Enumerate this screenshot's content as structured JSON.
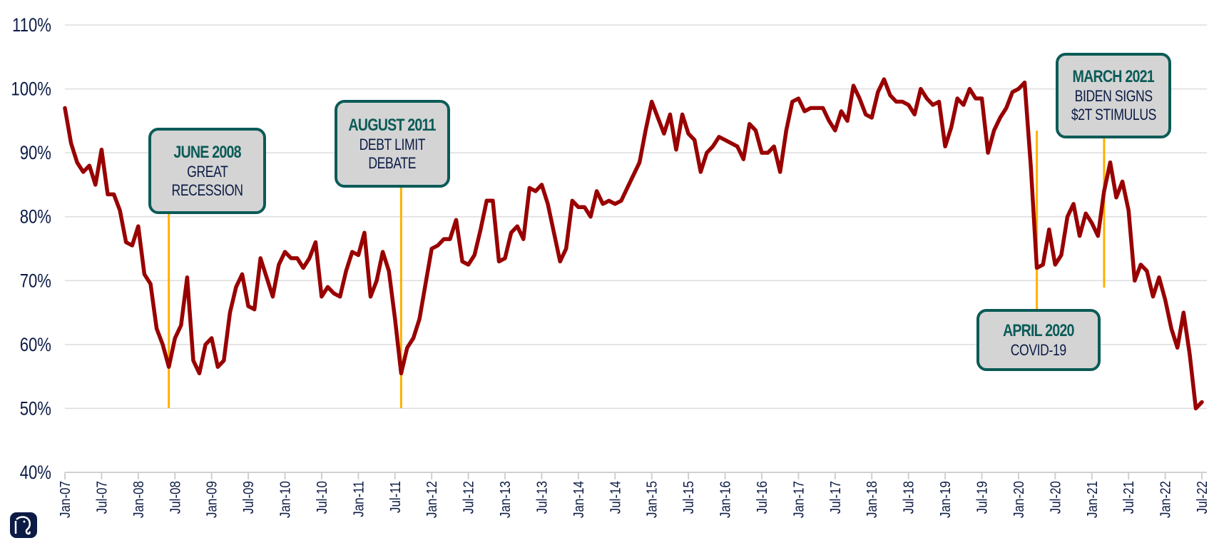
{
  "chart_data": {
    "type": "line",
    "title": "",
    "xlabel": "",
    "ylabel": "",
    "ylim": [
      40,
      110
    ],
    "y_ticks": [
      "40%",
      "50%",
      "60%",
      "70%",
      "80%",
      "90%",
      "100%",
      "110%"
    ],
    "y_tick_values": [
      40,
      50,
      60,
      70,
      80,
      90,
      100,
      110
    ],
    "x_ticks": [
      "Jan-07",
      "Jul-07",
      "Jan-08",
      "Jul-08",
      "Jan-09",
      "Jul-09",
      "Jan-10",
      "Jul-10",
      "Jan-11",
      "Jul-11",
      "Jan-12",
      "Jul-12",
      "Jan-13",
      "Jul-13",
      "Jan-14",
      "Jul-14",
      "Jan-15",
      "Jul-15",
      "Jan-16",
      "Jul-16",
      "Jan-17",
      "Jul-17",
      "Jan-18",
      "Jul-18",
      "Jan-19",
      "Jul-19",
      "Jan-20",
      "Jul-20",
      "Jan-21",
      "Jul-21",
      "Jan-22",
      "Jul-22"
    ],
    "x_start": "Jan-07",
    "x_unit": "month",
    "grid": true,
    "series": [
      {
        "name": "series",
        "color": "#990000",
        "values": [
          97,
          91.5,
          88.5,
          87,
          88,
          85,
          90.5,
          83.5,
          83.5,
          81,
          76,
          75.5,
          78.5,
          71,
          69.5,
          62.5,
          60,
          56.5,
          61,
          63,
          70.5,
          57.5,
          55.5,
          60,
          61,
          56.5,
          57.5,
          65,
          69,
          71,
          66,
          65.5,
          73.5,
          70.5,
          67.5,
          72.5,
          74.5,
          73.5,
          73.5,
          72,
          73.5,
          76,
          67.5,
          69,
          68,
          67.5,
          71.5,
          74.5,
          74,
          77.5,
          67.5,
          70,
          74.5,
          71.5,
          64,
          55.5,
          59.5,
          61,
          64,
          69.5,
          75,
          75.5,
          76.5,
          76.5,
          79.5,
          73,
          72.5,
          74,
          78,
          82.5,
          82.5,
          73,
          73.5,
          77.5,
          78.5,
          76.5,
          84.5,
          84,
          85,
          82,
          77.5,
          73,
          75,
          82.5,
          81.5,
          81.5,
          80,
          84,
          82,
          82.5,
          82,
          82.5,
          84.5,
          86.5,
          88.5,
          93.5,
          98,
          95.5,
          93,
          96,
          90.5,
          96,
          93,
          92,
          87,
          90,
          91,
          92.5,
          92,
          91.5,
          91,
          89,
          94.5,
          93.5,
          90,
          90,
          91,
          87,
          93.5,
          98,
          98.5,
          96.5,
          97,
          97,
          97,
          95,
          93.5,
          96.5,
          95,
          100.5,
          98.5,
          96,
          95.5,
          99.5,
          101.5,
          99,
          98,
          98,
          97.5,
          96,
          100,
          98.5,
          97.5,
          98,
          91,
          94,
          98.5,
          97.5,
          100,
          98.5,
          98.5,
          90,
          93.5,
          95.5,
          97,
          99.5,
          100,
          101,
          88,
          72,
          72.5,
          78,
          72.5,
          74,
          80,
          82,
          77,
          80.5,
          79,
          77,
          84,
          88.5,
          83,
          85.5,
          81,
          70,
          72.5,
          71.5,
          67.5,
          70.5,
          67,
          62.5,
          59.5,
          65,
          58.5,
          50,
          51
        ]
      }
    ],
    "annotations": [
      {
        "date": "JUNE 2008",
        "lines": [
          "GREAT",
          "RECESSION"
        ],
        "month_index": 17
      },
      {
        "date": "AUGUST 2011",
        "lines": [
          "DEBT LIMIT",
          "DEBATE"
        ],
        "month_index": 55
      },
      {
        "date": "APRIL 2020",
        "lines": [
          "COVID-19"
        ],
        "month_index": 159
      },
      {
        "date": "MARCH 2021",
        "lines": [
          "BIDEN SIGNS",
          "$2T STIMULUS"
        ],
        "month_index": 170
      }
    ]
  },
  "colors": {
    "line": "#990000",
    "marker": "#ffb000",
    "box_border": "#0b5b57",
    "box_fill": "#d4d4d4",
    "text": "#0c1b45",
    "grid": "#dddddd"
  }
}
